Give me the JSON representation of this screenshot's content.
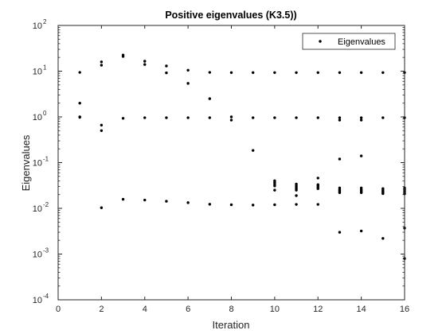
{
  "chart_data": {
    "type": "scatter",
    "title": "Positive eigenvalues (K3.5))",
    "xlabel": "Iteration",
    "ylabel": "Eigenvalues",
    "xlim": [
      0,
      16
    ],
    "ylim": [
      0.0001,
      100
    ],
    "yscale": "log",
    "x_ticks": [
      0,
      2,
      4,
      6,
      8,
      10,
      12,
      14,
      16
    ],
    "x_tick_labels": [
      "0",
      "2",
      "4",
      "6",
      "8",
      "10",
      "12",
      "14",
      "16"
    ],
    "y_ticks": [
      0.0001,
      0.001,
      0.01,
      0.1,
      1,
      10,
      100
    ],
    "y_tick_labels": [
      {
        "base": "10",
        "exp": "-4"
      },
      {
        "base": "10",
        "exp": "-3"
      },
      {
        "base": "10",
        "exp": "-2"
      },
      {
        "base": "10",
        "exp": "-1"
      },
      {
        "base": "10",
        "exp": "0"
      },
      {
        "base": "10",
        "exp": "1"
      },
      {
        "base": "10",
        "exp": "2"
      }
    ],
    "grid": false,
    "legend": {
      "position": "top-right",
      "entries": [
        "Eigenvalues"
      ]
    },
    "marker_color": "#000000",
    "series": [
      {
        "name": "Eigenvalues",
        "points": [
          [
            1,
            9.4
          ],
          [
            1,
            2.0
          ],
          [
            1,
            1.0
          ],
          [
            1,
            0.98
          ],
          [
            2,
            16
          ],
          [
            2,
            13.5
          ],
          [
            2,
            0.66
          ],
          [
            2,
            0.5
          ],
          [
            2,
            0.0103
          ],
          [
            3,
            22.5
          ],
          [
            3,
            21
          ],
          [
            3,
            0.93
          ],
          [
            3,
            0.0158
          ],
          [
            4,
            16.5
          ],
          [
            4,
            14
          ],
          [
            4,
            0.96
          ],
          [
            4,
            0.0152
          ],
          [
            5,
            13
          ],
          [
            5,
            9.2
          ],
          [
            5,
            0.96
          ],
          [
            5,
            0.0143
          ],
          [
            6,
            10.5
          ],
          [
            6,
            5.4
          ],
          [
            6,
            0.96
          ],
          [
            6,
            0.0133
          ],
          [
            7,
            9.4
          ],
          [
            7,
            2.5
          ],
          [
            7,
            0.96
          ],
          [
            7,
            0.0123
          ],
          [
            8,
            9.3
          ],
          [
            8,
            1.0
          ],
          [
            8,
            0.85
          ],
          [
            8,
            0.012
          ],
          [
            9,
            9.3
          ],
          [
            9,
            0.96
          ],
          [
            9,
            0.185
          ],
          [
            9,
            0.0118
          ],
          [
            10,
            9.3
          ],
          [
            10,
            0.96
          ],
          [
            10,
            0.04
          ],
          [
            10,
            0.037
          ],
          [
            10,
            0.034
          ],
          [
            10,
            0.031
          ],
          [
            10,
            0.025
          ],
          [
            10,
            0.012
          ],
          [
            11,
            9.3
          ],
          [
            11,
            0.96
          ],
          [
            11,
            0.034
          ],
          [
            11,
            0.031
          ],
          [
            11,
            0.029
          ],
          [
            11,
            0.027
          ],
          [
            11,
            0.025
          ],
          [
            11,
            0.019
          ],
          [
            11,
            0.0122
          ],
          [
            12,
            9.3
          ],
          [
            12,
            0.96
          ],
          [
            12,
            0.046
          ],
          [
            12,
            0.033
          ],
          [
            12,
            0.031
          ],
          [
            12,
            0.029
          ],
          [
            12,
            0.027
          ],
          [
            12,
            0.0122
          ],
          [
            13,
            9.3
          ],
          [
            13,
            0.96
          ],
          [
            13,
            0.85
          ],
          [
            13,
            0.12
          ],
          [
            13,
            0.028
          ],
          [
            13,
            0.026
          ],
          [
            13,
            0.0245
          ],
          [
            13,
            0.023
          ],
          [
            13,
            0.022
          ],
          [
            13,
            0.003
          ],
          [
            14,
            9.3
          ],
          [
            14,
            0.96
          ],
          [
            14,
            0.85
          ],
          [
            14,
            0.14
          ],
          [
            14,
            0.028
          ],
          [
            14,
            0.026
          ],
          [
            14,
            0.0245
          ],
          [
            14,
            0.023
          ],
          [
            14,
            0.022
          ],
          [
            14,
            0.0032
          ],
          [
            15,
            9.3
          ],
          [
            15,
            0.96
          ],
          [
            15,
            0.027
          ],
          [
            15,
            0.025
          ],
          [
            15,
            0.0235
          ],
          [
            15,
            0.022
          ],
          [
            15,
            0.021
          ],
          [
            15,
            0.0022
          ],
          [
            16,
            9.3
          ],
          [
            16,
            0.96
          ],
          [
            16,
            0.028
          ],
          [
            16,
            0.026
          ],
          [
            16,
            0.024
          ],
          [
            16,
            0.022
          ],
          [
            16,
            0.0208
          ],
          [
            16,
            0.0037
          ],
          [
            16,
            0.0008
          ]
        ]
      }
    ]
  }
}
